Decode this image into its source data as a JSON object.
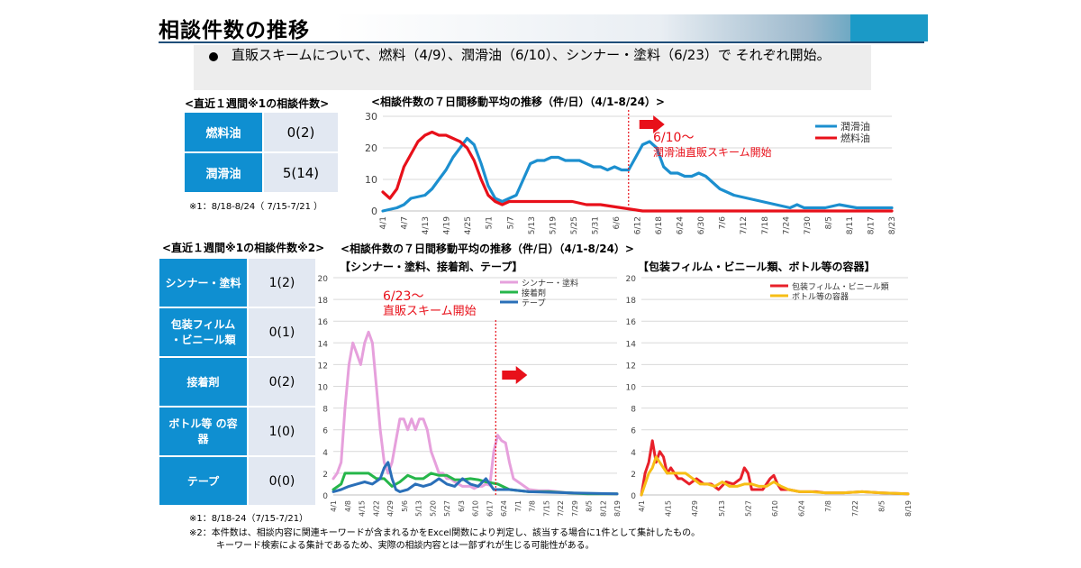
{
  "page": {
    "title": "相談件数の推移",
    "bullet": "直販スキームについて、燃料（4/9）、潤滑油（6/10）、シンナー・塗料（6/23）で それぞれ開始。"
  },
  "section1": {
    "table_header": "<直近１週間※1の相談件数>",
    "rows": [
      {
        "label": "燃料油",
        "value": "0(2)"
      },
      {
        "label": "潤滑油",
        "value": "5(14)"
      }
    ],
    "footnote": "※1：8/18-8/24（ 7/15-7/21 ）"
  },
  "section2": {
    "table_header": "<直近１週間※1の相談件数※2>",
    "chart_header": "<相談件数の７日間移動平均の推移（件/日）（4/1-8/24）>",
    "rows": [
      {
        "label": "シンナー・塗料",
        "value": "1(2)"
      },
      {
        "label": "包装フィルム ・ビニール類",
        "value": "0(1)"
      },
      {
        "label": "接着剤",
        "value": "0(2)"
      },
      {
        "label": "ボトル等 の容器",
        "value": "1(0)"
      },
      {
        "label": "テープ",
        "value": "0(0)"
      }
    ],
    "footnote1": "※1：8/18-24（7/15-7/21）",
    "footnote2": "※2：本件数は、相談内容に関連キーワードが含まれるかをExcel関数により判定し、該当する場合に1件として集計したもの。",
    "footnote3": "キーワード検索による集計であるため、実際の相談内容とは一部ずれが生じる可能性がある。"
  },
  "chart_data": [
    {
      "type": "line",
      "title": "<相談件数の７日間移動平均の推移（件/日）（4/1-8/24）>",
      "ylim": [
        0,
        30
      ],
      "yticks": [
        0,
        10,
        20,
        30
      ],
      "x_tick_labels": [
        "4/1",
        "4/7",
        "4/13",
        "4/19",
        "4/25",
        "5/1",
        "5/7",
        "5/13",
        "5/19",
        "5/25",
        "5/31",
        "6/6",
        "6/12",
        "6/18",
        "6/24",
        "6/30",
        "7/6",
        "7/12",
        "7/18",
        "7/24",
        "7/30",
        "8/5",
        "8/11",
        "8/17",
        "8/23"
      ],
      "xlim_days": [
        0,
        145
      ],
      "annotation": {
        "text": "6/10〜",
        "subtext": "潤滑油直販スキーム開始",
        "x_day": 70
      },
      "legend_position": "top-right",
      "series": [
        {
          "name": "潤滑油",
          "color": "#1c8fcf",
          "x": [
            0,
            4,
            6,
            8,
            12,
            14,
            16,
            18,
            20,
            24,
            26,
            28,
            30,
            32,
            34,
            36,
            38,
            40,
            42,
            44,
            46,
            48,
            50,
            52,
            56,
            58,
            60,
            62,
            64,
            66,
            68,
            70,
            72,
            74,
            76,
            78,
            80,
            82,
            84,
            86,
            88,
            90,
            92,
            94,
            96,
            98,
            100,
            104,
            108,
            112,
            116,
            118,
            120,
            122,
            126,
            130,
            135,
            140,
            145
          ],
          "y": [
            0,
            1,
            2,
            4,
            5,
            7,
            10,
            13,
            17,
            23,
            21,
            15,
            8,
            4,
            3,
            4,
            5,
            10,
            15,
            16,
            16,
            17,
            17,
            16,
            16,
            15,
            14,
            14,
            13,
            14,
            13,
            13,
            17,
            21,
            22,
            20,
            14,
            12,
            12,
            11,
            11,
            12,
            11,
            9,
            7,
            6,
            5,
            4,
            3,
            2,
            1,
            2,
            1,
            1,
            1,
            2,
            1,
            1,
            1
          ]
        },
        {
          "name": "燃料油",
          "color": "#e8101a",
          "x": [
            0,
            2,
            4,
            6,
            8,
            10,
            12,
            14,
            16,
            18,
            20,
            22,
            24,
            26,
            28,
            30,
            32,
            34,
            36,
            40,
            46,
            50,
            54,
            58,
            62,
            68,
            74,
            145
          ],
          "y": [
            6,
            4,
            7,
            14,
            18,
            22,
            24,
            25,
            24,
            24,
            23,
            22,
            20,
            16,
            10,
            5,
            3,
            2,
            3,
            3,
            3,
            3,
            3,
            2,
            2,
            1,
            0,
            0
          ]
        }
      ]
    },
    {
      "type": "line",
      "title": "【シンナー・塗料、接着剤、テープ】",
      "ylim": [
        0,
        20
      ],
      "yticks": [
        0,
        2,
        4,
        6,
        8,
        10,
        12,
        14,
        16,
        18,
        20
      ],
      "x_tick_labels": [
        "4/1",
        "4/8",
        "4/15",
        "4/22",
        "4/29",
        "5/6",
        "5/13",
        "5/20",
        "5/27",
        "6/3",
        "6/10",
        "6/17",
        "6/24",
        "7/1",
        "7/8",
        "7/15",
        "7/22",
        "7/29",
        "8/5",
        "8/12",
        "8/19"
      ],
      "xlim_days": [
        0,
        145
      ],
      "annotation": {
        "text": "6/23〜",
        "subtext": "直販スキーム開始",
        "x_day": 83
      },
      "legend_position": "top-right",
      "series": [
        {
          "name": "シンナー・塗料",
          "color": "#e6a0dc",
          "x": [
            0,
            2,
            4,
            6,
            8,
            10,
            12,
            14,
            16,
            18,
            20,
            22,
            24,
            26,
            28,
            30,
            32,
            34,
            36,
            38,
            40,
            42,
            44,
            46,
            48,
            50,
            52,
            54,
            56,
            58,
            60,
            62,
            64,
            66,
            68,
            70,
            72,
            74,
            76,
            78,
            80,
            82,
            84,
            86,
            88,
            90,
            92,
            96,
            100,
            105,
            110,
            120,
            130,
            145
          ],
          "y": [
            1.5,
            2,
            3,
            8,
            12,
            14,
            13,
            12,
            14,
            15,
            14,
            10,
            6,
            3,
            2,
            3,
            5,
            7,
            7,
            6,
            7,
            6,
            7,
            7,
            6,
            4,
            3,
            2,
            2,
            1.5,
            1.5,
            1.2,
            1,
            0.8,
            0.8,
            0.8,
            0.6,
            0.8,
            0.8,
            1,
            0.9,
            4,
            5.5,
            5,
            4.8,
            3,
            1.5,
            1,
            0.5,
            0.4,
            0.4,
            0.2,
            0.1,
            0.1
          ]
        },
        {
          "name": "接着剤",
          "color": "#26b64a",
          "x": [
            0,
            4,
            6,
            10,
            14,
            18,
            22,
            26,
            30,
            34,
            38,
            42,
            46,
            50,
            54,
            58,
            62,
            66,
            70,
            74,
            78,
            84,
            90,
            100,
            110,
            120,
            130,
            145
          ],
          "y": [
            0.5,
            1,
            2,
            2,
            2,
            2,
            1.5,
            1.5,
            0.8,
            1.2,
            1.8,
            1.5,
            1.5,
            2,
            1.8,
            1.8,
            1.4,
            1.4,
            1.5,
            1.4,
            1.2,
            1,
            0.5,
            0.3,
            0.3,
            0.2,
            0.1,
            0.1
          ]
        },
        {
          "name": "テープ",
          "color": "#2a6fb8",
          "x": [
            0,
            4,
            8,
            12,
            16,
            20,
            24,
            26,
            28,
            30,
            32,
            34,
            38,
            42,
            46,
            50,
            54,
            58,
            62,
            66,
            70,
            74,
            78,
            82,
            90,
            100,
            120,
            145
          ],
          "y": [
            0.3,
            0.5,
            0.8,
            1,
            1.2,
            1,
            1.5,
            2.5,
            3,
            1.5,
            0.5,
            0.3,
            0.5,
            1,
            0.8,
            1,
            1.5,
            1,
            0.8,
            1.5,
            1,
            0.8,
            1.5,
            0.5,
            0.5,
            0.3,
            0.2,
            0.1
          ]
        }
      ]
    },
    {
      "type": "line",
      "title": "【包装フィルム・ビニール類、ボトル等の容器】",
      "ylim": [
        0,
        20
      ],
      "yticks": [
        0,
        2,
        4,
        6,
        8,
        10,
        12,
        14,
        16,
        18,
        20
      ],
      "x_tick_labels": [
        "4/1",
        "4/15",
        "4/29",
        "5/13",
        "5/27",
        "6/10",
        "6/24",
        "7/8",
        "7/22",
        "8/5",
        "8/19"
      ],
      "xlim_days": [
        0,
        145
      ],
      "legend_position": "top-right",
      "series": [
        {
          "name": "包装フィルム・ビニール類",
          "color": "#e8202a",
          "x": [
            0,
            2,
            4,
            6,
            8,
            10,
            12,
            14,
            16,
            18,
            20,
            22,
            26,
            30,
            34,
            38,
            42,
            46,
            50,
            54,
            56,
            58,
            60,
            62,
            66,
            70,
            72,
            74,
            76,
            80,
            86,
            90,
            95,
            100,
            110,
            120,
            130,
            145
          ],
          "y": [
            0,
            2,
            3,
            5,
            3,
            4,
            3.5,
            2,
            2.5,
            2,
            1.5,
            1.5,
            1,
            1.5,
            1,
            1,
            0.5,
            1.2,
            1,
            1.5,
            2.5,
            2,
            0.5,
            0.5,
            0.5,
            1.5,
            1.8,
            1,
            0.5,
            0.5,
            0.3,
            0.3,
            0.3,
            0.2,
            0.2,
            0.3,
            0.2,
            0.1
          ]
        },
        {
          "name": "ボトル等の容器",
          "color": "#f6be16",
          "x": [
            0,
            2,
            4,
            6,
            8,
            10,
            12,
            14,
            16,
            20,
            24,
            28,
            32,
            36,
            40,
            44,
            48,
            52,
            56,
            60,
            64,
            68,
            72,
            76,
            80,
            86,
            92,
            100,
            110,
            120,
            130,
            145
          ],
          "y": [
            0,
            1,
            2,
            2.5,
            3.5,
            3,
            2.5,
            2,
            2,
            2,
            2,
            1.5,
            1,
            1,
            0.8,
            1.2,
            0.8,
            0.8,
            1,
            1,
            0.8,
            0.8,
            1.2,
            0.8,
            0.5,
            0.3,
            0.3,
            0.2,
            0.2,
            0.3,
            0.2,
            0.1
          ]
        }
      ]
    }
  ]
}
